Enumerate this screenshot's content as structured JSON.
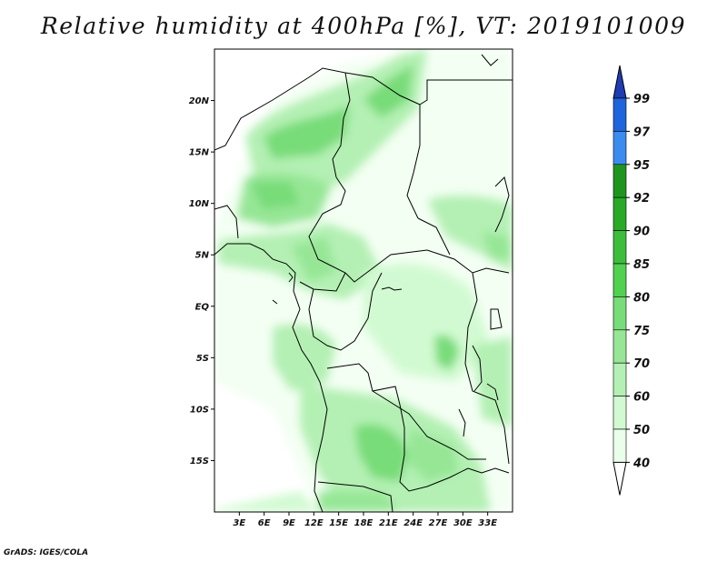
{
  "title": "Relative humidity at 400hPa [%], VT: 2019101009",
  "credit": "GrADS: IGES/COLA",
  "map": {
    "lon_range": [
      0,
      36
    ],
    "lat_range": [
      -20,
      25
    ],
    "lat_ticks": [
      {
        "value": 20,
        "label": "20N"
      },
      {
        "value": 15,
        "label": "15N"
      },
      {
        "value": 10,
        "label": "10N"
      },
      {
        "value": 5,
        "label": "5N"
      },
      {
        "value": 0,
        "label": "EQ"
      },
      {
        "value": -5,
        "label": "5S"
      },
      {
        "value": -10,
        "label": "10S"
      },
      {
        "value": -15,
        "label": "15S"
      }
    ],
    "lon_ticks": [
      {
        "value": 3,
        "label": "3E"
      },
      {
        "value": 6,
        "label": "6E"
      },
      {
        "value": 9,
        "label": "9E"
      },
      {
        "value": 12,
        "label": "12E"
      },
      {
        "value": 15,
        "label": "15E"
      },
      {
        "value": 18,
        "label": "18E"
      },
      {
        "value": 21,
        "label": "21E"
      },
      {
        "value": 24,
        "label": "24E"
      },
      {
        "value": 27,
        "label": "27E"
      },
      {
        "value": 30,
        "label": "30E"
      },
      {
        "value": 33,
        "label": "33E"
      }
    ]
  },
  "colorbar": {
    "levels": [
      {
        "label": "99",
        "color": "#1e64dc"
      },
      {
        "label": "97",
        "color": "#3c8cf0"
      },
      {
        "label": "95",
        "color": "#1e961e"
      },
      {
        "label": "92",
        "color": "#28aa28"
      },
      {
        "label": "90",
        "color": "#3cbe3c"
      },
      {
        "label": "85",
        "color": "#50d250"
      },
      {
        "label": "80",
        "color": "#78dc78"
      },
      {
        "label": "75",
        "color": "#96e696"
      },
      {
        "label": "70",
        "color": "#b4f0b4"
      },
      {
        "label": "60",
        "color": "#d2fad2"
      },
      {
        "label": "50",
        "color": "#eaffea"
      },
      {
        "label": "40",
        "color": "#ffffff"
      }
    ],
    "top_arrow_color": "#1e3cb4",
    "bottom_arrow_color": "#ffffff"
  }
}
